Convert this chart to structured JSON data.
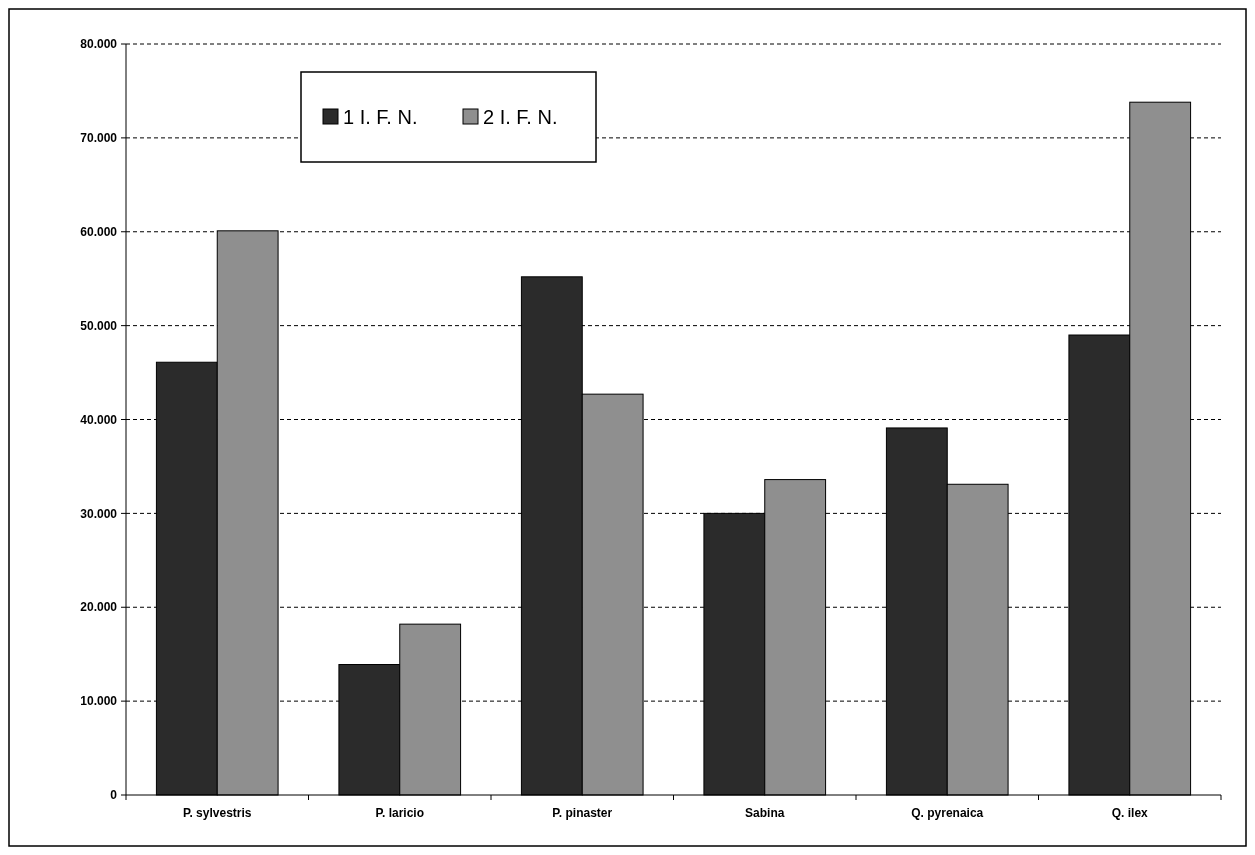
{
  "chart_data": {
    "type": "bar",
    "categories": [
      "P. sylvestris",
      "P. laricio",
      "P. pinaster",
      "Sabina",
      "Q. pyrenaica",
      "Q. ilex"
    ],
    "series": [
      {
        "name": "1 I. F. N.",
        "color": "#2b2b2b",
        "values": [
          46100,
          13900,
          55200,
          30000,
          39100,
          49000
        ]
      },
      {
        "name": "2 I. F. N.",
        "color": "#8f8f8f",
        "values": [
          60100,
          18200,
          42700,
          33600,
          33100,
          73800
        ]
      }
    ],
    "ylim": [
      0,
      80000
    ],
    "yticks": [
      {
        "value": 0,
        "label": "0"
      },
      {
        "value": 10000,
        "label": "10.000"
      },
      {
        "value": 20000,
        "label": "20.000"
      },
      {
        "value": 30000,
        "label": "30.000"
      },
      {
        "value": 40000,
        "label": "40.000"
      },
      {
        "value": 50000,
        "label": "50.000"
      },
      {
        "value": 60000,
        "label": "60.000"
      },
      {
        "value": 70000,
        "label": "70.000"
      },
      {
        "value": 80000,
        "label": "80.000"
      }
    ],
    "grid": "y",
    "legend": "top left"
  }
}
